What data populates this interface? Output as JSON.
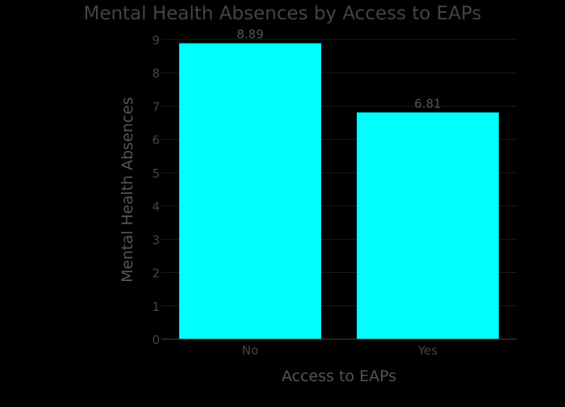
{
  "chart_data": {
    "type": "bar",
    "title": "Mental Health Absences by Access to EAPs",
    "xlabel": "Access to EAPs",
    "ylabel": "Mental Health Absences",
    "categories": [
      "No",
      "Yes"
    ],
    "values": [
      8.89,
      6.81
    ],
    "data_labels": [
      "8.89",
      "6.81"
    ],
    "ylim": [
      0,
      9
    ],
    "yticks": [
      "0",
      "1",
      "2",
      "3",
      "4",
      "5",
      "6",
      "7",
      "8",
      "9"
    ],
    "grid": true,
    "bar_color": "#00ffff",
    "background_color": "#000000",
    "text_color": "#555555",
    "label_color": "#444444",
    "grid_color": "#1a1a1a"
  }
}
